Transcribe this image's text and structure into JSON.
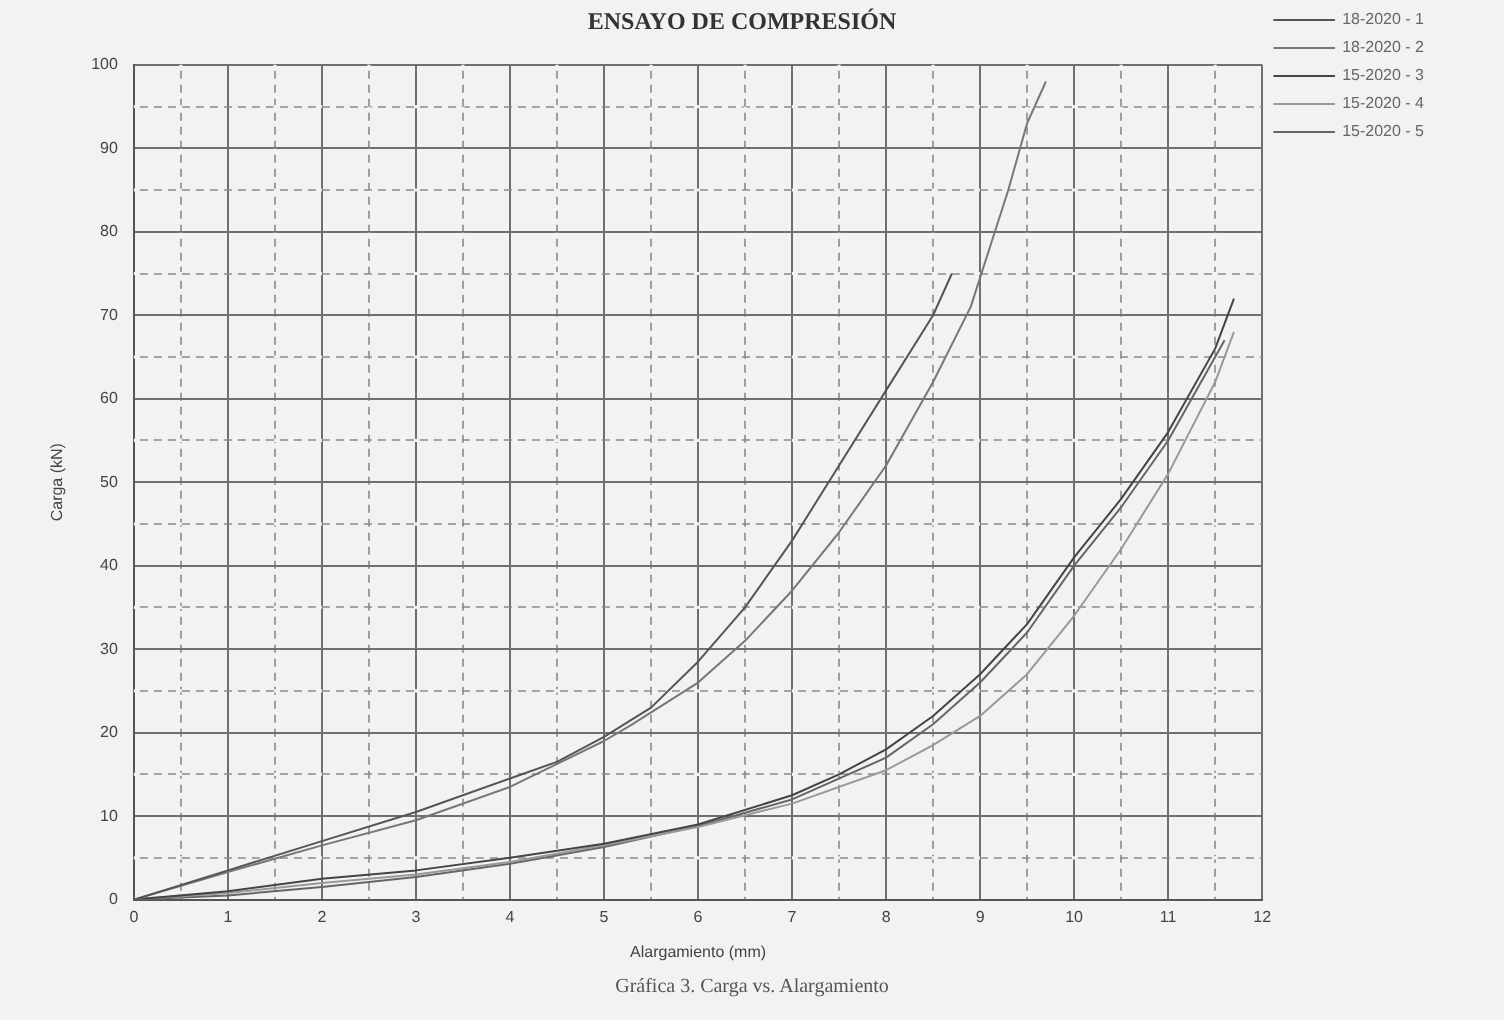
{
  "chart_data": {
    "type": "line",
    "title": "ENSAYO DE COMPRESIÓN",
    "xlabel": "Alargamiento (mm)",
    "ylabel": "Carga (kN)",
    "annotations": [
      "Gráfica 3. Carga vs. Alargamiento"
    ],
    "xlim": [
      0,
      12
    ],
    "xticks": [
      0,
      {
        "value": 0.5,
        "label": null
      },
      1,
      {
        "value": 1.5,
        "label": null
      },
      2,
      {
        "value": 2.5,
        "label": null
      },
      3,
      {
        "value": 3.5,
        "label": null
      },
      4,
      {
        "value": 4.5,
        "label": null
      },
      5,
      {
        "value": 5.5,
        "label": null
      },
      6,
      {
        "value": 6.5,
        "label": null
      },
      7,
      {
        "value": 7.5,
        "label": null
      },
      8,
      {
        "value": 8.5,
        "label": null
      },
      9,
      {
        "value": 9.5,
        "label": null
      },
      10,
      {
        "value": 10.5,
        "label": null
      },
      11,
      {
        "value": 11.5,
        "label": null
      },
      12
    ],
    "ylim": [
      0,
      100
    ],
    "yticks": [
      0,
      {
        "value": 5,
        "label": null
      },
      10,
      {
        "value": 15,
        "label": null
      },
      20,
      {
        "value": 25,
        "label": null
      },
      30,
      {
        "value": 35,
        "label": null
      },
      40,
      {
        "value": 45,
        "label": null
      },
      50,
      {
        "value": 55,
        "label": null
      },
      60,
      {
        "value": 65,
        "label": null
      },
      70,
      {
        "value": 75,
        "label": null
      },
      80,
      {
        "value": 85,
        "label": null
      },
      90,
      {
        "value": 95,
        "label": null
      },
      100
    ],
    "grid": true,
    "legend": "top right",
    "marker": "none",
    "line_style": "solid",
    "series": [
      {
        "name": "18-2020 - 1",
        "color": "#555555",
        "x": [
          0,
          1,
          2,
          3,
          4,
          4.5,
          5,
          5.5,
          6,
          6.5,
          7,
          7.5,
          8,
          8.5,
          8.7
        ],
        "values": [
          0,
          3.5,
          7,
          10.5,
          14.5,
          16.5,
          19.5,
          23,
          28.5,
          35,
          43,
          52,
          61,
          70,
          75
        ]
      },
      {
        "name": "18-2020 - 2",
        "color": "#777777",
        "x": [
          0,
          1,
          2,
          3,
          4,
          5,
          5.3,
          6,
          6.5,
          7,
          7.5,
          8,
          8.5,
          8.9,
          9.1,
          9.3,
          9.5,
          9.7
        ],
        "values": [
          0,
          3.3,
          6.5,
          9.5,
          13.5,
          19,
          21,
          26,
          31,
          37,
          44,
          52,
          62,
          71,
          78,
          85,
          93,
          98
        ]
      },
      {
        "name": "15-2020 - 3",
        "color": "#444444",
        "x": [
          0,
          1,
          2,
          3,
          4,
          5,
          6,
          7,
          7.5,
          8,
          8.5,
          9,
          9.5,
          10,
          10.5,
          11,
          11.5,
          11.7
        ],
        "values": [
          0,
          1,
          2.5,
          3.5,
          5,
          6.7,
          9,
          12.5,
          15,
          18,
          22,
          27,
          33,
          41,
          48,
          56,
          66,
          72
        ]
      },
      {
        "name": "15-2020 - 4",
        "color": "#999999",
        "x": [
          0,
          1,
          2,
          3,
          4,
          5,
          6,
          7,
          8,
          8.5,
          9,
          9.5,
          10,
          10.5,
          11,
          11.5,
          11.7
        ],
        "values": [
          0,
          0.8,
          2,
          3,
          4.5,
          6.5,
          8.7,
          11.5,
          15.5,
          18.5,
          22,
          27,
          34,
          42,
          51,
          62,
          68
        ]
      },
      {
        "name": "15-2020 - 5",
        "color": "#666666",
        "x": [
          0,
          1,
          2,
          3,
          4,
          5,
          6,
          7,
          8,
          8.5,
          9,
          9.5,
          10,
          10.5,
          11,
          11.6
        ],
        "values": [
          0,
          0.5,
          1.5,
          2.7,
          4.3,
          6.3,
          8.8,
          12,
          17,
          21,
          26,
          32,
          40,
          47,
          55,
          67
        ]
      }
    ]
  }
}
